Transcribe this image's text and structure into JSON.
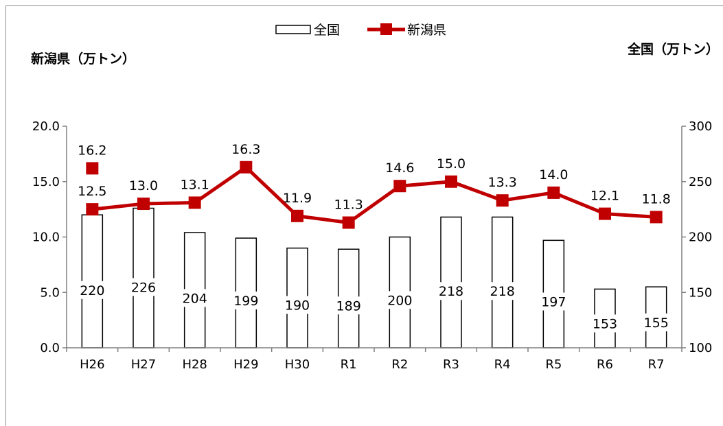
{
  "chart_data": {
    "type": "bar+line",
    "categories": [
      "H26",
      "H27",
      "H28",
      "H29",
      "H30",
      "R1",
      "R2",
      "R3",
      "R4",
      "R5",
      "R6",
      "R7"
    ],
    "series": [
      {
        "name": "全国",
        "type": "bar",
        "axis": "right",
        "values": [
          220,
          226,
          204,
          199,
          190,
          189,
          200,
          218,
          218,
          197,
          153,
          155
        ],
        "color": "#000000",
        "fill": "#ffffff"
      },
      {
        "name": "新潟県",
        "type": "line",
        "axis": "left",
        "values": [
          12.5,
          13.0,
          13.1,
          16.3,
          11.9,
          11.3,
          14.6,
          15.0,
          13.3,
          14.0,
          12.1,
          11.8
        ],
        "value_labels": [
          "12.5",
          "13.0",
          "13.1",
          "16.3",
          "11.9",
          "11.3",
          "14.6",
          "15.0",
          "13.3",
          "14.0",
          "12.1",
          "11.8"
        ],
        "color": "#c00000"
      }
    ],
    "extra_point": {
      "category": "H26",
      "value": 16.2,
      "label": "16.2",
      "color": "#c00000"
    },
    "left_axis": {
      "title": "新潟県（万トン）",
      "ylim": [
        0,
        20
      ],
      "ticks": [
        "0.0",
        "5.0",
        "10.0",
        "15.0",
        "20.0"
      ]
    },
    "right_axis": {
      "title": "全国（万トン）",
      "ylim": [
        100,
        300
      ],
      "ticks": [
        "100",
        "150",
        "200",
        "250",
        "300"
      ]
    },
    "legend": {
      "position": "top-center",
      "items": [
        "全国",
        "新潟県"
      ]
    },
    "grid": false
  }
}
